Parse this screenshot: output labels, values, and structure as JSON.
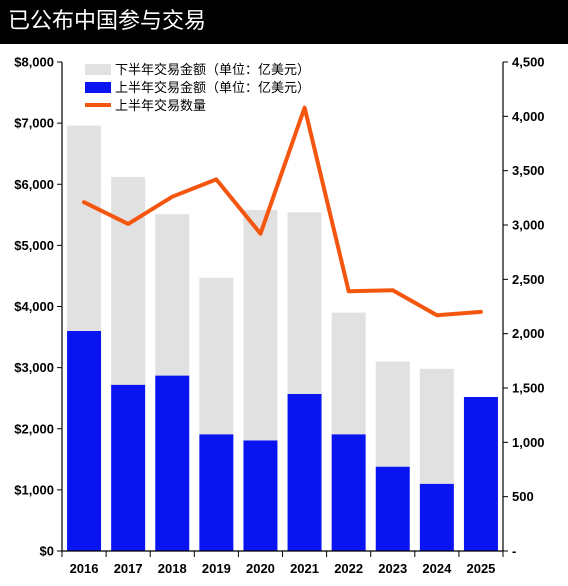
{
  "header": {
    "title": "已公布中国参与交易"
  },
  "chart_data": {
    "type": "bar",
    "title": "已公布中国参与交易",
    "categories": [
      "2016",
      "2017",
      "2018",
      "2019",
      "2020",
      "2021",
      "2022",
      "2023",
      "2024",
      "2025"
    ],
    "series": [
      {
        "name": "上半年交易金额（单位：亿美元）",
        "type": "bar",
        "axis": "left",
        "stack": "total",
        "color": "#0a14f0",
        "values": [
          3600,
          2720,
          2870,
          1910,
          1810,
          2570,
          1910,
          1380,
          1100,
          2520
        ]
      },
      {
        "name": "下半年交易金额（单位：亿美元）",
        "type": "bar",
        "axis": "left",
        "stack": "total",
        "color": "#e1e1e1",
        "values": [
          3360,
          3400,
          2640,
          2560,
          3770,
          2970,
          1990,
          1720,
          1880,
          0
        ]
      },
      {
        "name": "上半年交易数量",
        "type": "line",
        "axis": "right",
        "color": "#f5560f",
        "values": [
          3210,
          3010,
          3260,
          3420,
          2920,
          4080,
          2390,
          2400,
          2170,
          2200
        ]
      }
    ],
    "legend_order": [
      1,
      0,
      2
    ],
    "legend_position": "top-left",
    "y_left": {
      "min": 0,
      "max": 8000,
      "step": 1000,
      "tick_labels": [
        "$0",
        "$1,000",
        "$2,000",
        "$3,000",
        "$4,000",
        "$5,000",
        "$6,000",
        "$7,000",
        "$8,000"
      ]
    },
    "y_right": {
      "min": 0,
      "max": 4500,
      "step": 500,
      "tick_labels": [
        "-",
        "500",
        "1,000",
        "1,500",
        "2,000",
        "2,500",
        "3,000",
        "3,500",
        "4,000",
        "4,500"
      ]
    },
    "grid": false
  }
}
